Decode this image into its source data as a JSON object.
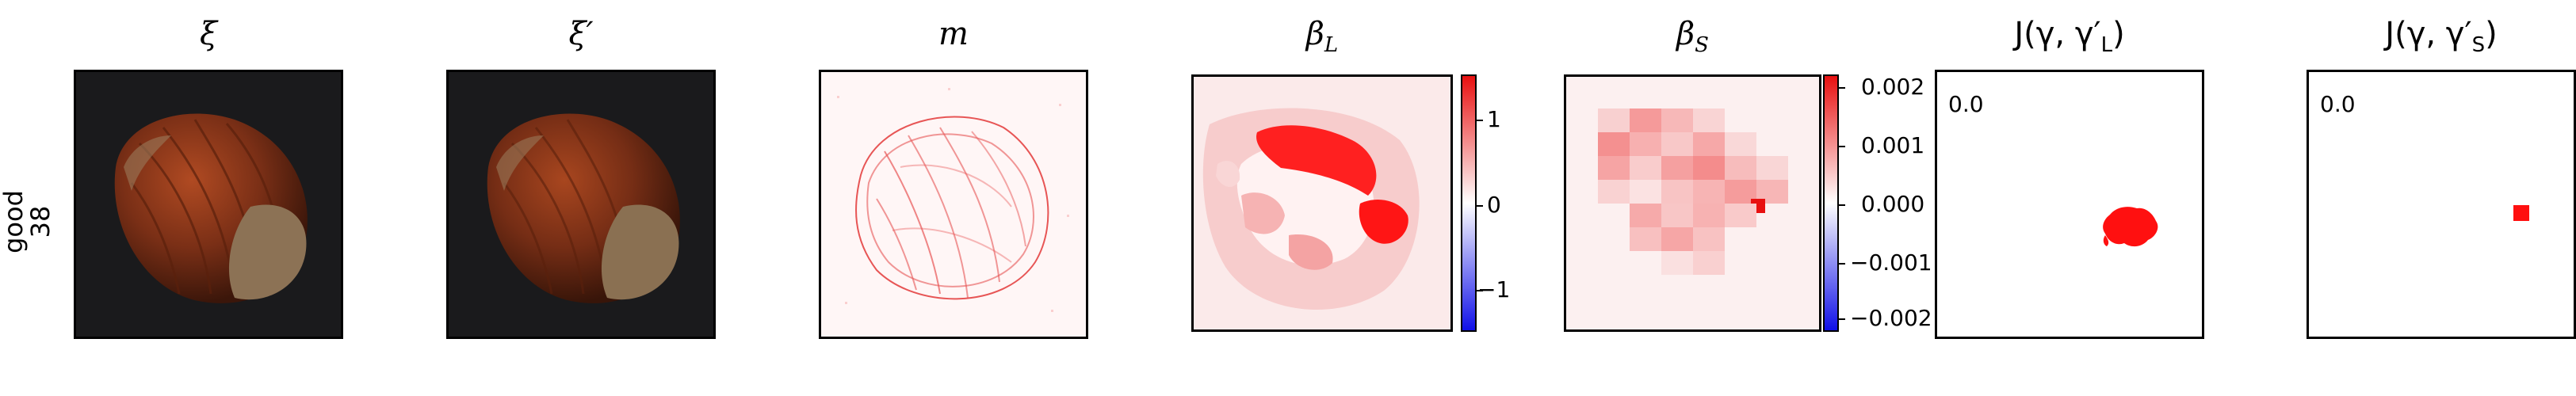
{
  "row": {
    "label_line1": "good",
    "label_line2": "38"
  },
  "panels": {
    "xi": {
      "title": "ξ"
    },
    "xi_prime": {
      "title": "ξ′"
    },
    "m": {
      "title": "m"
    },
    "beta_L": {
      "title_main": "β",
      "title_sub": "L",
      "ticks": [
        "1",
        "0",
        "−1"
      ]
    },
    "beta_S": {
      "title_main": "β",
      "title_sub": "S",
      "ticks": [
        "0.002",
        "0.001",
        "0.000",
        "−0.001",
        "−0.002"
      ]
    },
    "J_L": {
      "title": "J(γ, γ′",
      "title_sub": "L",
      "title_end": ")",
      "value": "0.0"
    },
    "J_S": {
      "title": "J(γ, γ′",
      "title_sub": "S",
      "title_end": ")",
      "value": "0.0"
    }
  },
  "colors": {
    "colormap_pos": "#ff0000",
    "colormap_neg": "#0000ff",
    "hazelnut": "#7a2f16",
    "background_dark": "#1a1a1c"
  }
}
